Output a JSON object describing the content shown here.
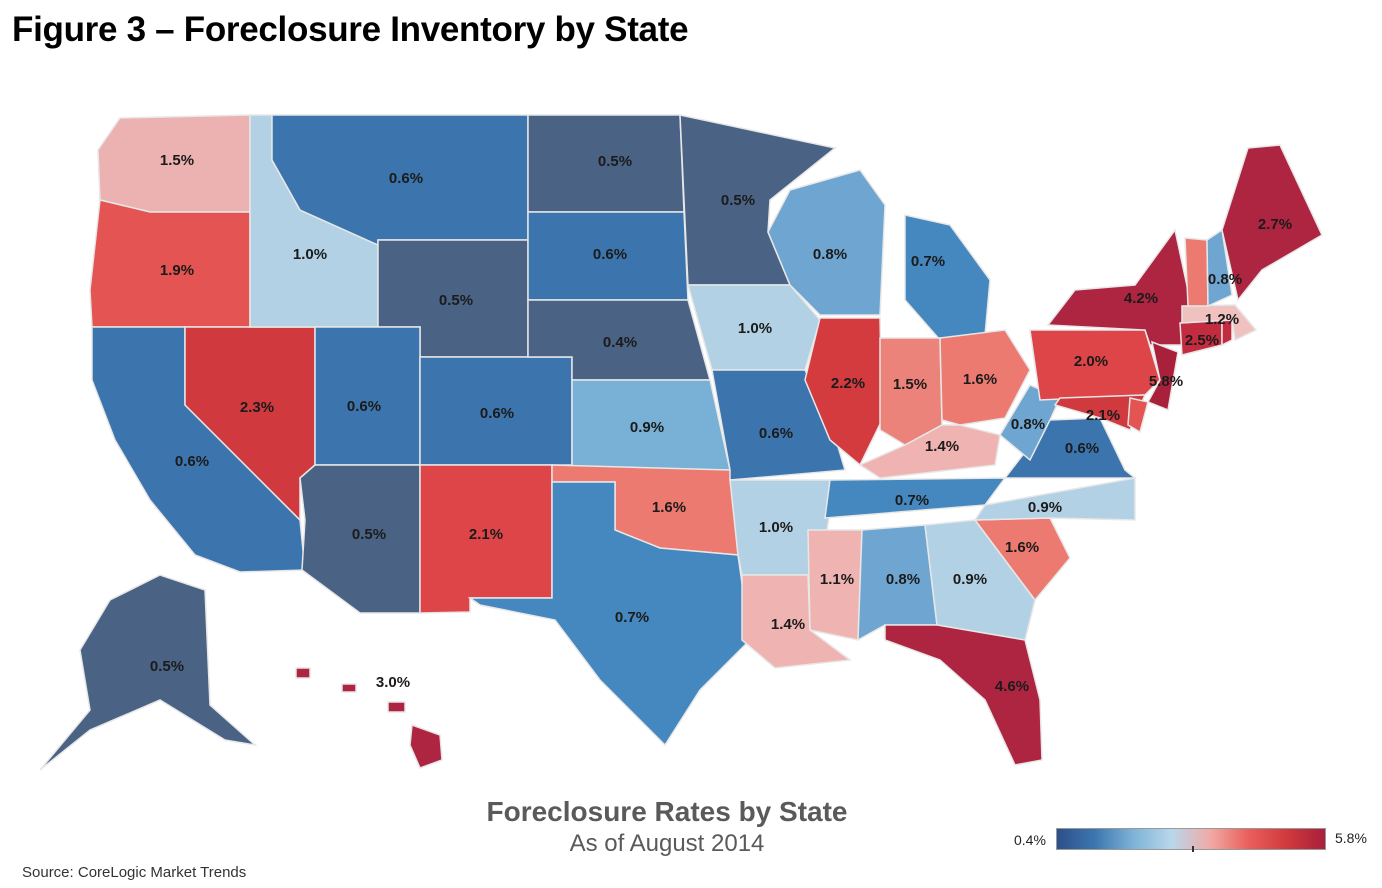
{
  "figure_title": "Figure 3 – Foreclosure Inventory by State",
  "map_title": "Foreclosure Rates by State",
  "map_subtitle": "As of August 2014",
  "source": "Source: CoreLogic Market Trends",
  "legend": {
    "min_label": "0.4%",
    "max_label": "5.8%",
    "min_value": 0.4,
    "max_value": 5.8,
    "colors": [
      "#2c4f8a",
      "#3d77b0",
      "#7eb3d8",
      "#b9d7ea",
      "#f0aaa6",
      "#ea5f5b",
      "#d03a3e",
      "#a8203a"
    ]
  },
  "states": [
    {
      "id": "WA",
      "value": 1.5,
      "label": "1.5%",
      "color": "#ecb2b2"
    },
    {
      "id": "OR",
      "value": 1.9,
      "label": "1.9%",
      "color": "#e35452"
    },
    {
      "id": "CA",
      "value": 0.6,
      "label": "0.6%",
      "color": "#3c75ad"
    },
    {
      "id": "NV",
      "value": 2.3,
      "label": "2.3%",
      "color": "#d03a3e"
    },
    {
      "id": "ID",
      "value": 1.0,
      "label": "1.0%",
      "color": "#b3d1e5"
    },
    {
      "id": "MT",
      "value": 0.6,
      "label": "0.6%",
      "color": "#3c75ad"
    },
    {
      "id": "WY",
      "value": 0.5,
      "label": "0.5%",
      "color": "#4a6385"
    },
    {
      "id": "UT",
      "value": 0.6,
      "label": "0.6%",
      "color": "#3c75ad"
    },
    {
      "id": "AZ",
      "value": 0.5,
      "label": "0.5%",
      "color": "#4a6385"
    },
    {
      "id": "CO",
      "value": 0.6,
      "label": "0.6%",
      "color": "#3c75ad"
    },
    {
      "id": "NM",
      "value": 2.1,
      "label": "2.1%",
      "color": "#dd4548"
    },
    {
      "id": "ND",
      "value": 0.5,
      "label": "0.5%",
      "color": "#4a6385"
    },
    {
      "id": "SD",
      "value": 0.6,
      "label": "0.6%",
      "color": "#3c75ad"
    },
    {
      "id": "NE",
      "value": 0.4,
      "label": "0.4%",
      "color": "#4a6385"
    },
    {
      "id": "KS",
      "value": 0.9,
      "label": "0.9%",
      "color": "#78b0d6"
    },
    {
      "id": "OK",
      "value": 1.6,
      "label": "1.6%",
      "color": "#ec7a70"
    },
    {
      "id": "TX",
      "value": 0.7,
      "label": "0.7%",
      "color": "#4587bf"
    },
    {
      "id": "MN",
      "value": 0.5,
      "label": "0.5%",
      "color": "#4a6385"
    },
    {
      "id": "IA",
      "value": 1.0,
      "label": "1.0%",
      "color": "#b3d1e5"
    },
    {
      "id": "MO",
      "value": 0.6,
      "label": "0.6%",
      "color": "#3c75ad"
    },
    {
      "id": "AR",
      "value": 1.0,
      "label": "1.0%",
      "color": "#b3d1e5"
    },
    {
      "id": "LA",
      "value": 1.4,
      "label": "1.4%",
      "color": "#efb4b1"
    },
    {
      "id": "WI",
      "value": 0.8,
      "label": "0.8%",
      "color": "#6ea6d1"
    },
    {
      "id": "IL",
      "value": 2.2,
      "label": "2.2%",
      "color": "#d43b3e"
    },
    {
      "id": "MI",
      "value": 0.7,
      "label": "0.7%",
      "color": "#4587bf"
    },
    {
      "id": "IN",
      "value": 1.5,
      "label": "1.5%",
      "color": "#ec837a"
    },
    {
      "id": "OH",
      "value": 1.6,
      "label": "1.6%",
      "color": "#ec7a70"
    },
    {
      "id": "KY",
      "value": 1.4,
      "label": "1.4%",
      "color": "#efb4b1"
    },
    {
      "id": "TN",
      "value": 0.7,
      "label": "0.7%",
      "color": "#4587bf"
    },
    {
      "id": "MS",
      "value": 1.1,
      "label": "1.1%",
      "color": "#efb4b1"
    },
    {
      "id": "AL",
      "value": 0.8,
      "label": "0.8%",
      "color": "#6ea6d1"
    },
    {
      "id": "GA",
      "value": 0.9,
      "label": "0.9%",
      "color": "#b3d1e5"
    },
    {
      "id": "FL",
      "value": 4.6,
      "label": "4.6%",
      "color": "#ad2541"
    },
    {
      "id": "SC",
      "value": 1.6,
      "label": "1.6%",
      "color": "#ec7a70"
    },
    {
      "id": "NC",
      "value": 0.9,
      "label": "0.9%",
      "color": "#b3d1e5"
    },
    {
      "id": "VA",
      "value": 0.6,
      "label": "0.6%",
      "color": "#3c75ad"
    },
    {
      "id": "WV",
      "value": 0.8,
      "label": "0.8%",
      "color": "#6ea6d1"
    },
    {
      "id": "PA",
      "value": 2.0,
      "label": "2.0%",
      "color": "#dd4548"
    },
    {
      "id": "NY",
      "value": 4.2,
      "label": "4.2%",
      "color": "#ad2541"
    },
    {
      "id": "NJ",
      "value": 5.8,
      "label": "5.8%",
      "color": "#a8203a"
    },
    {
      "id": "MD",
      "value": 2.1,
      "label": "2.1%",
      "color": "#d03a3e"
    },
    {
      "id": "DE",
      "value": null,
      "label": "",
      "color": "#e35452"
    },
    {
      "id": "CT",
      "value": 2.5,
      "label": "2.5%",
      "color": "#c32b3e"
    },
    {
      "id": "RI",
      "value": null,
      "label": "",
      "color": "#c32b3e"
    },
    {
      "id": "MA",
      "value": 1.2,
      "label": "1.2%",
      "color": "#efc2c0"
    },
    {
      "id": "VT",
      "value": null,
      "label": "",
      "color": "#ec7a70"
    },
    {
      "id": "NH",
      "value": 0.8,
      "label": "0.8%",
      "color": "#6ea6d1"
    },
    {
      "id": "ME",
      "value": 2.7,
      "label": "2.7%",
      "color": "#ad2541"
    },
    {
      "id": "AK",
      "value": 0.5,
      "label": "0.5%",
      "color": "#4a6385"
    },
    {
      "id": "HI",
      "value": 3.0,
      "label": "3.0%",
      "color": "#ad2541"
    }
  ]
}
